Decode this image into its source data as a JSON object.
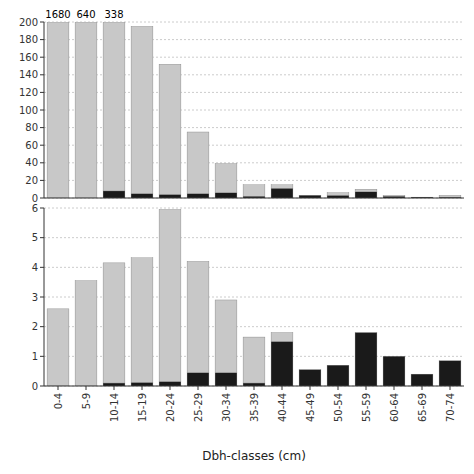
{
  "chart_data": [
    {
      "type": "bar",
      "stacked": true,
      "grid": true,
      "tick_labels": "y",
      "categories": [
        "0-4",
        "5-9",
        "10-14",
        "15-19",
        "20-24",
        "25-29",
        "30-34",
        "35-39",
        "40-44",
        "45-49",
        "50-54",
        "55-59",
        "60-64",
        "65-69",
        "70-74"
      ],
      "series": [
        {
          "color": "#1a1a1a",
          "values": [
            0,
            0,
            8,
            5,
            4,
            5,
            6,
            2,
            11,
            3,
            3,
            7,
            2,
            1,
            1
          ]
        },
        {
          "color": "#c8c8c8",
          "values": [
            200,
            200,
            192,
            190,
            148,
            70,
            33,
            13,
            4,
            0,
            3,
            3,
            1,
            0,
            2
          ]
        }
      ],
      "annotations": [
        {
          "text": "1680",
          "category": "0-4"
        },
        {
          "text": "640",
          "category": "5-9"
        },
        {
          "text": "338",
          "category": "10-14"
        }
      ],
      "ylim": [
        0,
        200
      ],
      "yticks": [
        0,
        20,
        40,
        60,
        80,
        100,
        120,
        140,
        160,
        180,
        200
      ]
    },
    {
      "type": "bar",
      "stacked": true,
      "grid": true,
      "x_label": "Dbh-classes (cm)",
      "categories": [
        "0-4",
        "5-9",
        "10-14",
        "15-19",
        "20-24",
        "25-29",
        "30-34",
        "35-39",
        "40-44",
        "45-49",
        "50-54",
        "55-59",
        "60-64",
        "65-69",
        "70-74"
      ],
      "series": [
        {
          "color": "#1a1a1a",
          "values": [
            0,
            0,
            0.1,
            0.12,
            0.15,
            0.45,
            0.45,
            0.1,
            1.5,
            0.55,
            0.7,
            1.8,
            1.0,
            0.4,
            0.85
          ]
        },
        {
          "color": "#c8c8c8",
          "values": [
            2.6,
            3.55,
            4.05,
            4.2,
            5.8,
            3.75,
            2.45,
            1.55,
            0.3,
            0,
            0,
            0,
            0,
            0,
            0
          ]
        }
      ],
      "ylim": [
        0,
        6
      ],
      "yticks": [
        0,
        1,
        2,
        3,
        4,
        5,
        6
      ]
    }
  ]
}
